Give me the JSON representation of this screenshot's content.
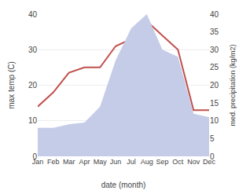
{
  "chart_data": {
    "type": "line",
    "categories": [
      "Jan",
      "Feb",
      "Mar",
      "Apr",
      "May",
      "Jun",
      "Jul",
      "Aug",
      "Sep",
      "Oct",
      "Nov",
      "Dec"
    ],
    "series": [
      {
        "type": "area",
        "axis": "y2",
        "color": "#c5cce8",
        "values": [
          8.0,
          8.0,
          9.0,
          9.5,
          14.0,
          27.0,
          36.0,
          40.0,
          30.0,
          28.0,
          12.0,
          11.0
        ]
      },
      {
        "type": "line",
        "color": "#c0504d",
        "values": [
          14.0,
          18.0,
          23.5,
          25.0,
          25.0,
          31.0,
          33.0,
          38.0,
          34.0,
          30.0,
          13.0,
          13.0
        ]
      }
    ],
    "xlabel": "date (month)",
    "ylabel": "max temp (C)",
    "y2label": "med. precipitation (kg/m2)",
    "ylim": [
      0,
      40
    ],
    "yticks": [
      0,
      10,
      20,
      30,
      40
    ],
    "y2lim": [
      0,
      40
    ],
    "y2ticks": [
      0,
      5,
      10,
      15,
      20,
      25,
      30,
      35,
      40
    ],
    "grid": true
  }
}
